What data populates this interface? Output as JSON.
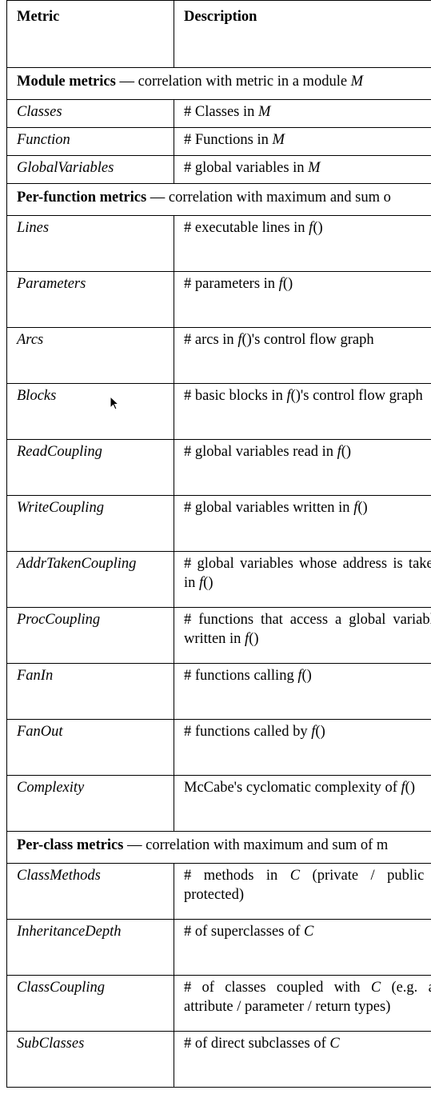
{
  "header": {
    "metric": "Metric",
    "description": "Description"
  },
  "sections": [
    {
      "title_bold": "Module metrics",
      "title_rest": " — correlation with metric in a module ",
      "title_var": "M",
      "row_class": "short",
      "rows": [
        {
          "metric": "Classes",
          "desc": [
            {
              "t": "# Classes in "
            },
            {
              "t": "M",
              "i": true
            }
          ]
        },
        {
          "metric": "Function",
          "desc": [
            {
              "t": "# Functions in "
            },
            {
              "t": "M",
              "i": true
            }
          ]
        },
        {
          "metric": "GlobalVariables",
          "desc": [
            {
              "t": "# global variables in "
            },
            {
              "t": "M",
              "i": true
            }
          ]
        }
      ]
    },
    {
      "title_bold": "Per-function metrics",
      "title_rest": " — correlation with maximum and sum o",
      "title_var": "",
      "row_class": "tall",
      "rows": [
        {
          "metric": "Lines",
          "desc": [
            {
              "t": "# executable lines in "
            },
            {
              "t": "f",
              "i": true
            },
            {
              "t": "()"
            }
          ]
        },
        {
          "metric": "Parameters",
          "desc": [
            {
              "t": "# parameters in "
            },
            {
              "t": "f",
              "i": true
            },
            {
              "t": "()"
            }
          ]
        },
        {
          "metric": "Arcs",
          "desc": [
            {
              "t": "# arcs in "
            },
            {
              "t": "f",
              "i": true
            },
            {
              "t": "()'s control flow graph"
            }
          ]
        },
        {
          "metric": "Blocks",
          "desc": [
            {
              "t": "# basic blocks in "
            },
            {
              "t": "f",
              "i": true
            },
            {
              "t": "()'s control flow graph"
            }
          ]
        },
        {
          "metric": "ReadCoupling",
          "desc": [
            {
              "t": "# global variables read in "
            },
            {
              "t": "f",
              "i": true
            },
            {
              "t": "()"
            }
          ]
        },
        {
          "metric": "WriteCoupling",
          "desc": [
            {
              "t": "# global variables written in "
            },
            {
              "t": "f",
              "i": true
            },
            {
              "t": "()"
            }
          ]
        },
        {
          "metric": "AddrTakenCoupling",
          "desc": [
            {
              "t": "# global variables whose address is taken in "
            },
            {
              "t": "f",
              "i": true
            },
            {
              "t": "()"
            }
          ]
        },
        {
          "metric": "ProcCoupling",
          "desc": [
            {
              "t": "# functions that access a global variable written in "
            },
            {
              "t": "f",
              "i": true
            },
            {
              "t": "()"
            }
          ]
        },
        {
          "metric": "FanIn",
          "desc": [
            {
              "t": "# functions calling "
            },
            {
              "t": "f",
              "i": true
            },
            {
              "t": "()"
            }
          ]
        },
        {
          "metric": "FanOut",
          "desc": [
            {
              "t": "# functions called by "
            },
            {
              "t": "f",
              "i": true
            },
            {
              "t": "()"
            }
          ]
        },
        {
          "metric": "Complexity",
          "desc": [
            {
              "t": "McCabe's cyclomatic complexity of "
            },
            {
              "t": "f",
              "i": true
            },
            {
              "t": "()"
            }
          ]
        }
      ]
    },
    {
      "title_bold": "Per-class metrics",
      "title_rest": " — correlation with maximum and sum of m",
      "title_var": "",
      "row_class": "tall",
      "rows": [
        {
          "metric": "ClassMethods",
          "desc": [
            {
              "t": "# methods in "
            },
            {
              "t": "C",
              "i": true
            },
            {
              "t": " (private / public / protected)"
            }
          ]
        },
        {
          "metric": "InheritanceDepth",
          "desc": [
            {
              "t": "# of superclasses of "
            },
            {
              "t": "C",
              "i": true
            }
          ]
        },
        {
          "metric": "ClassCoupling",
          "desc": [
            {
              "t": "# of classes coupled with "
            },
            {
              "t": "C",
              "i": true
            },
            {
              "t": " (e.g. as attribute / parameter / return types)"
            }
          ]
        },
        {
          "metric": "SubClasses",
          "desc": [
            {
              "t": "# of direct subclasses of "
            },
            {
              "t": "C",
              "i": true
            }
          ]
        }
      ]
    }
  ]
}
